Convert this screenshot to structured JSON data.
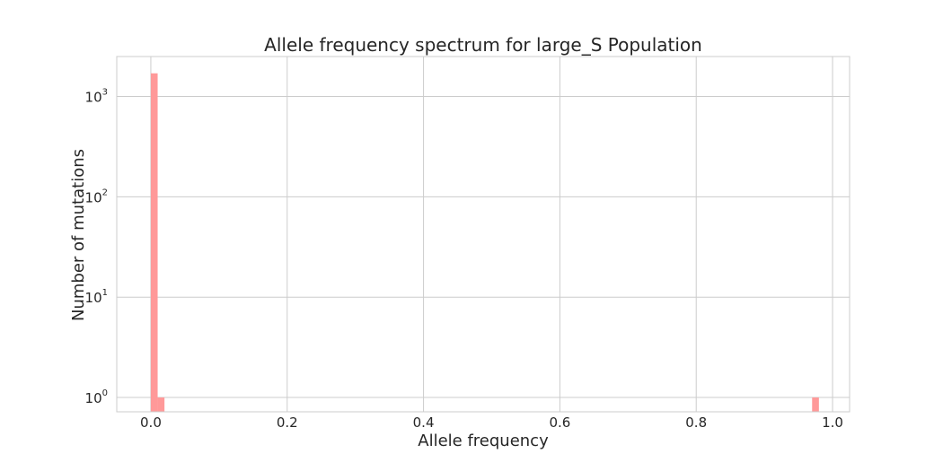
{
  "chart_data": {
    "type": "bar",
    "subtype": "histogram",
    "title": "Allele frequency spectrum for large_S Population",
    "xlabel": "Allele frequency",
    "ylabel": "Number of mutations",
    "xlim": [
      -0.05,
      1.025
    ],
    "ylim": [
      0.72,
      2500
    ],
    "yscale": "log",
    "grid": true,
    "bar_color": "#ff9999",
    "gridline_color": "#cccccc",
    "x_ticks": [
      "0.0",
      "0.2",
      "0.4",
      "0.6",
      "0.8",
      "1.0"
    ],
    "x_tick_values": [
      0.0,
      0.2,
      0.4,
      0.6,
      0.8,
      1.0
    ],
    "y_ticks": [
      {
        "value": 1,
        "base": "10",
        "exp": "0"
      },
      {
        "value": 10,
        "base": "10",
        "exp": "1"
      },
      {
        "value": 100,
        "base": "10",
        "exp": "2"
      },
      {
        "value": 1000,
        "base": "10",
        "exp": "3"
      }
    ],
    "bins": [
      {
        "x0": 0.0,
        "x1": 0.01,
        "value": 1700
      },
      {
        "x0": 0.01,
        "x1": 0.02,
        "value": 1
      },
      {
        "x0": 0.97,
        "x1": 0.98,
        "value": 1
      }
    ]
  }
}
